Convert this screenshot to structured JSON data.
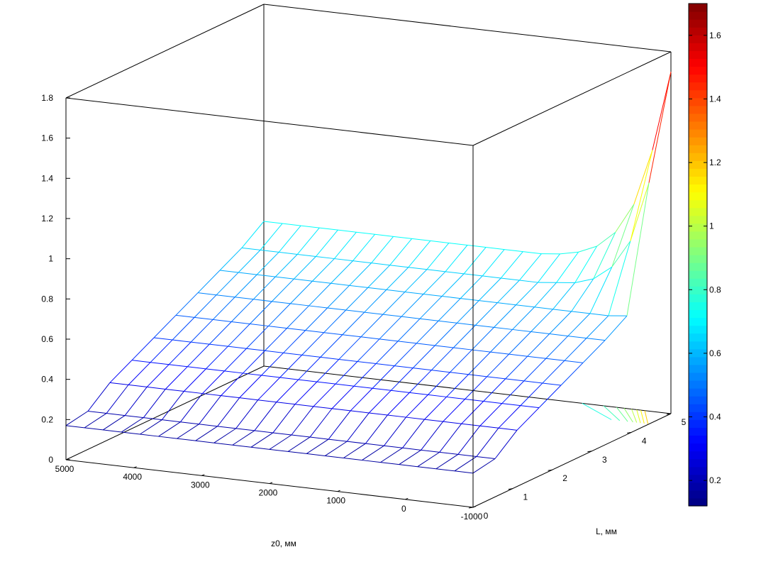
{
  "chart_data": {
    "type": "surface3d",
    "xlabel": "z0, мм",
    "ylabel": "L, мм",
    "zlabel": "",
    "x_ticks": [
      5000,
      4000,
      3000,
      2000,
      1000,
      0,
      -1000
    ],
    "y_ticks": [
      0,
      1,
      2,
      3,
      4,
      5
    ],
    "z_ticks": [
      0,
      0.2,
      0.4,
      0.6,
      0.8,
      1,
      1.2,
      1.4,
      1.6,
      1.8
    ],
    "x_tick_labels": [
      "5000",
      "4000",
      "3000",
      "2000",
      "1000",
      "0",
      "-1000"
    ],
    "y_tick_labels": [
      "0",
      "1",
      "2",
      "3",
      "4",
      "5"
    ],
    "z_tick_labels": [
      "0",
      "0.2",
      "0.4",
      "0.6",
      "0.8",
      "1",
      "1.2",
      "1.4",
      "1.6",
      "1.8"
    ],
    "xlim": [
      -1000,
      5000
    ],
    "ylim": [
      0,
      5
    ],
    "zlim": [
      0,
      1.8
    ],
    "grid": false,
    "colormap": "jet",
    "colorbar": {
      "position": "right",
      "range": [
        0.12,
        1.7
      ],
      "ticks": [
        0.2,
        0.4,
        0.6,
        0.8,
        1,
        1.2,
        1.4,
        1.6
      ],
      "tick_labels": [
        "0.2",
        "0.4",
        "0.6",
        "0.8",
        "1",
        "1.2",
        "1.4",
        "1.6"
      ]
    },
    "surface_z": [
      [
        0.17,
        0.17,
        0.17,
        0.17,
        0.17,
        0.17,
        0.17,
        0.17,
        0.17,
        0.17,
        0.17,
        0.17,
        0.17,
        0.17,
        0.17,
        0.17,
        0.17,
        0.17,
        0.17,
        0.17,
        0.17,
        0.17,
        0.17
      ],
      [
        0.19,
        0.19,
        0.19,
        0.19,
        0.19,
        0.19,
        0.19,
        0.19,
        0.19,
        0.19,
        0.19,
        0.19,
        0.19,
        0.19,
        0.19,
        0.19,
        0.19,
        0.19,
        0.19,
        0.19,
        0.19,
        0.19,
        0.19
      ],
      [
        0.28,
        0.28,
        0.28,
        0.28,
        0.28,
        0.28,
        0.28,
        0.28,
        0.28,
        0.28,
        0.28,
        0.28,
        0.28,
        0.28,
        0.28,
        0.28,
        0.28,
        0.28,
        0.28,
        0.28,
        0.28,
        0.28,
        0.28
      ],
      [
        0.34,
        0.34,
        0.34,
        0.34,
        0.34,
        0.34,
        0.34,
        0.34,
        0.34,
        0.34,
        0.34,
        0.34,
        0.34,
        0.34,
        0.34,
        0.34,
        0.34,
        0.34,
        0.34,
        0.34,
        0.34,
        0.34,
        0.34
      ],
      [
        0.4,
        0.4,
        0.4,
        0.4,
        0.4,
        0.4,
        0.4,
        0.4,
        0.4,
        0.4,
        0.4,
        0.4,
        0.4,
        0.4,
        0.4,
        0.4,
        0.4,
        0.4,
        0.4,
        0.4,
        0.4,
        0.4,
        0.4
      ],
      [
        0.46,
        0.46,
        0.46,
        0.46,
        0.46,
        0.46,
        0.46,
        0.46,
        0.46,
        0.46,
        0.46,
        0.46,
        0.46,
        0.46,
        0.46,
        0.46,
        0.46,
        0.46,
        0.46,
        0.46,
        0.46,
        0.46,
        0.46
      ],
      [
        0.52,
        0.52,
        0.52,
        0.52,
        0.52,
        0.52,
        0.52,
        0.52,
        0.52,
        0.52,
        0.52,
        0.52,
        0.52,
        0.52,
        0.52,
        0.52,
        0.52,
        0.52,
        0.52,
        0.52,
        0.52,
        0.52,
        0.52
      ],
      [
        0.58,
        0.58,
        0.58,
        0.58,
        0.58,
        0.58,
        0.58,
        0.58,
        0.58,
        0.58,
        0.58,
        0.58,
        0.58,
        0.58,
        0.58,
        0.58,
        0.58,
        0.58,
        0.58,
        0.58,
        0.58,
        0.58,
        0.59
      ],
      [
        0.64,
        0.64,
        0.64,
        0.64,
        0.64,
        0.64,
        0.64,
        0.64,
        0.64,
        0.64,
        0.64,
        0.64,
        0.64,
        0.64,
        0.64,
        0.64,
        0.64,
        0.65,
        0.66,
        0.69,
        0.76,
        0.9,
        1.2
      ],
      [
        0.72,
        0.72,
        0.72,
        0.72,
        0.72,
        0.72,
        0.72,
        0.72,
        0.72,
        0.72,
        0.72,
        0.72,
        0.72,
        0.72,
        0.72,
        0.72,
        0.73,
        0.75,
        0.79,
        0.87,
        1.02,
        1.3,
        1.7
      ]
    ],
    "x_grid_range": [
      -1000,
      5000
    ],
    "y_grid_range": [
      0,
      5
    ]
  }
}
